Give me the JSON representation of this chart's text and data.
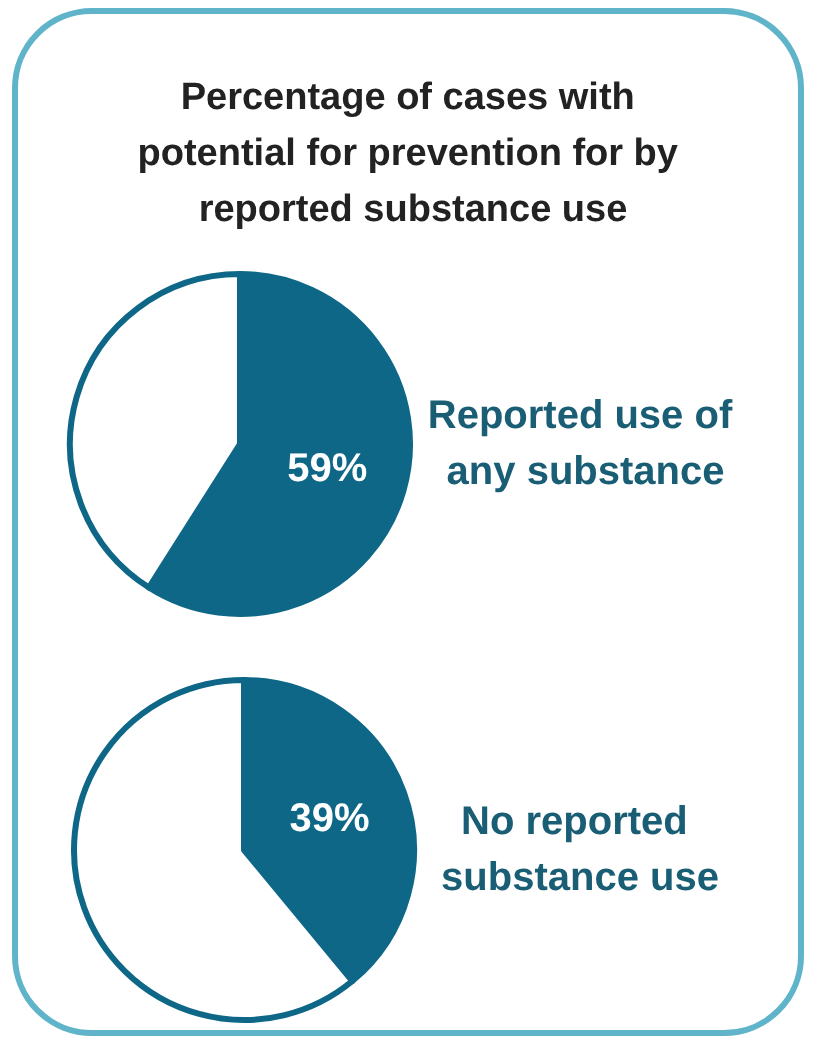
{
  "chart_data": [
    {
      "type": "pie",
      "title": "Percentage of cases with potential for prevention for by reported substance use",
      "categories": [
        null,
        null
      ],
      "values": [
        59,
        41
      ],
      "colors": [
        "#0e6787",
        "#ffffff"
      ],
      "value_labels": [
        "59%",
        null
      ],
      "annotations": [
        "Reported use of any substance"
      ]
    },
    {
      "type": "pie",
      "categories": [
        null,
        null
      ],
      "values": [
        39,
        61
      ],
      "colors": [
        "#0e6787",
        "#ffffff"
      ],
      "value_labels": [
        "39%",
        null
      ],
      "annotations": [
        "No reported substance use"
      ]
    }
  ]
}
